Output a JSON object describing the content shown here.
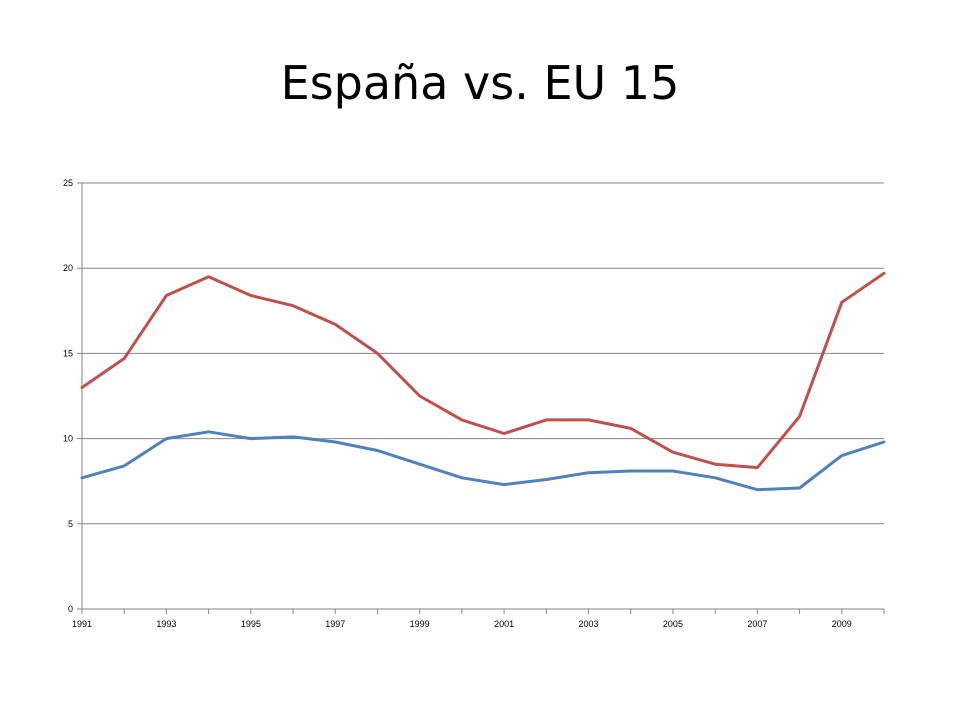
{
  "slide": {
    "title": "España vs. EU 15"
  },
  "chart_data": {
    "type": "line",
    "title": "",
    "xlabel": "",
    "ylabel": "",
    "x": [
      1991,
      1992,
      1993,
      1994,
      1995,
      1996,
      1997,
      1998,
      1999,
      2000,
      2001,
      2002,
      2003,
      2004,
      2005,
      2006,
      2007,
      2008,
      2009,
      2010
    ],
    "x_tick_labels": [
      "1991",
      "1993",
      "1995",
      "1997",
      "1999",
      "2001",
      "2003",
      "2005",
      "2007",
      "2009"
    ],
    "y_tick_labels": [
      "0",
      "5",
      "10",
      "15",
      "20",
      "25"
    ],
    "ylim": [
      0,
      25
    ],
    "grid": true,
    "legend": "none",
    "series": [
      {
        "color": "#4F81BD",
        "values": [
          7.7,
          8.4,
          10.0,
          10.4,
          10.0,
          10.1,
          9.8,
          9.3,
          8.5,
          7.7,
          7.3,
          7.6,
          8.0,
          8.1,
          8.1,
          7.7,
          7.0,
          7.1,
          9.0,
          9.8
        ]
      },
      {
        "color": "#C0504D",
        "values": [
          13.0,
          14.7,
          18.4,
          19.5,
          18.4,
          17.8,
          16.7,
          15.0,
          12.5,
          11.1,
          10.3,
          11.1,
          11.1,
          10.6,
          9.2,
          8.5,
          8.3,
          11.3,
          18.0,
          19.7
        ]
      }
    ]
  }
}
